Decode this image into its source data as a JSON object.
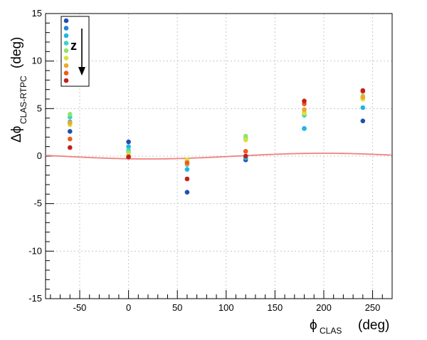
{
  "chart_data": {
    "type": "scatter",
    "xlabel_main": "ϕ",
    "xlabel_sub": "CLAS",
    "xlabel_unit": "(deg)",
    "ylabel_main": "Δϕ",
    "ylabel_sub": "CLAS-RTPC",
    "ylabel_unit": "(deg)",
    "xlim": [
      -85,
      270
    ],
    "ylim": [
      -15,
      15
    ],
    "x_ticks": [
      -50,
      0,
      50,
      100,
      150,
      200,
      250
    ],
    "y_ticks": [
      -15,
      -10,
      -5,
      0,
      5,
      10,
      15
    ],
    "grid": true,
    "legend": {
      "placement": "top-left",
      "arrow_label": "z",
      "colors": [
        "#1f4fb5",
        "#1c86d6",
        "#22b5e6",
        "#3fd2c2",
        "#8fe36d",
        "#d9e236",
        "#f2a62e",
        "#f05a1e",
        "#c0201b"
      ]
    },
    "fit_curve": {
      "color": "#f08080",
      "amplitude": 0.3,
      "phase_deg": 20
    },
    "series": [
      {
        "color": "#1f4fb5",
        "x": [
          -60,
          0,
          60,
          120,
          180,
          240
        ],
        "y": [
          2.6,
          1.5,
          -3.8,
          -0.4,
          2.9,
          3.7
        ]
      },
      {
        "color": "#22b5e6",
        "x": [
          -60,
          0,
          60,
          120,
          180,
          240
        ],
        "y": [
          3.6,
          1.0,
          -1.4,
          -0.2,
          2.9,
          5.1
        ]
      },
      {
        "color": "#3fd2c2",
        "x": [
          -60,
          0,
          60,
          120,
          180,
          240
        ],
        "y": [
          4.1,
          0.6,
          -0.9,
          1.8,
          4.3,
          6.1
        ]
      },
      {
        "color": "#8fe36d",
        "x": [
          -60,
          0,
          60,
          120,
          180,
          240
        ],
        "y": [
          4.4,
          0.4,
          -0.5,
          2.1,
          4.6,
          6.3
        ]
      },
      {
        "color": "#d9e236",
        "x": [
          -60,
          0,
          60,
          120,
          180,
          240
        ],
        "y": [
          3.3,
          0.1,
          -0.4,
          1.7,
          4.5,
          6.0
        ]
      },
      {
        "color": "#f2a62e",
        "x": [
          -60,
          0,
          60,
          120,
          180,
          240
        ],
        "y": [
          3.5,
          0.0,
          -0.8,
          0.5,
          4.9,
          6.2
        ]
      },
      {
        "color": "#f05a1e",
        "x": [
          -60,
          0,
          60,
          120,
          180,
          240
        ],
        "y": [
          1.8,
          -0.1,
          -0.7,
          0.5,
          5.5,
          6.8
        ]
      },
      {
        "color": "#c0201b",
        "x": [
          -60,
          0,
          60,
          120,
          180,
          240
        ],
        "y": [
          0.9,
          -0.1,
          -2.4,
          0.0,
          5.8,
          6.9
        ]
      }
    ]
  }
}
